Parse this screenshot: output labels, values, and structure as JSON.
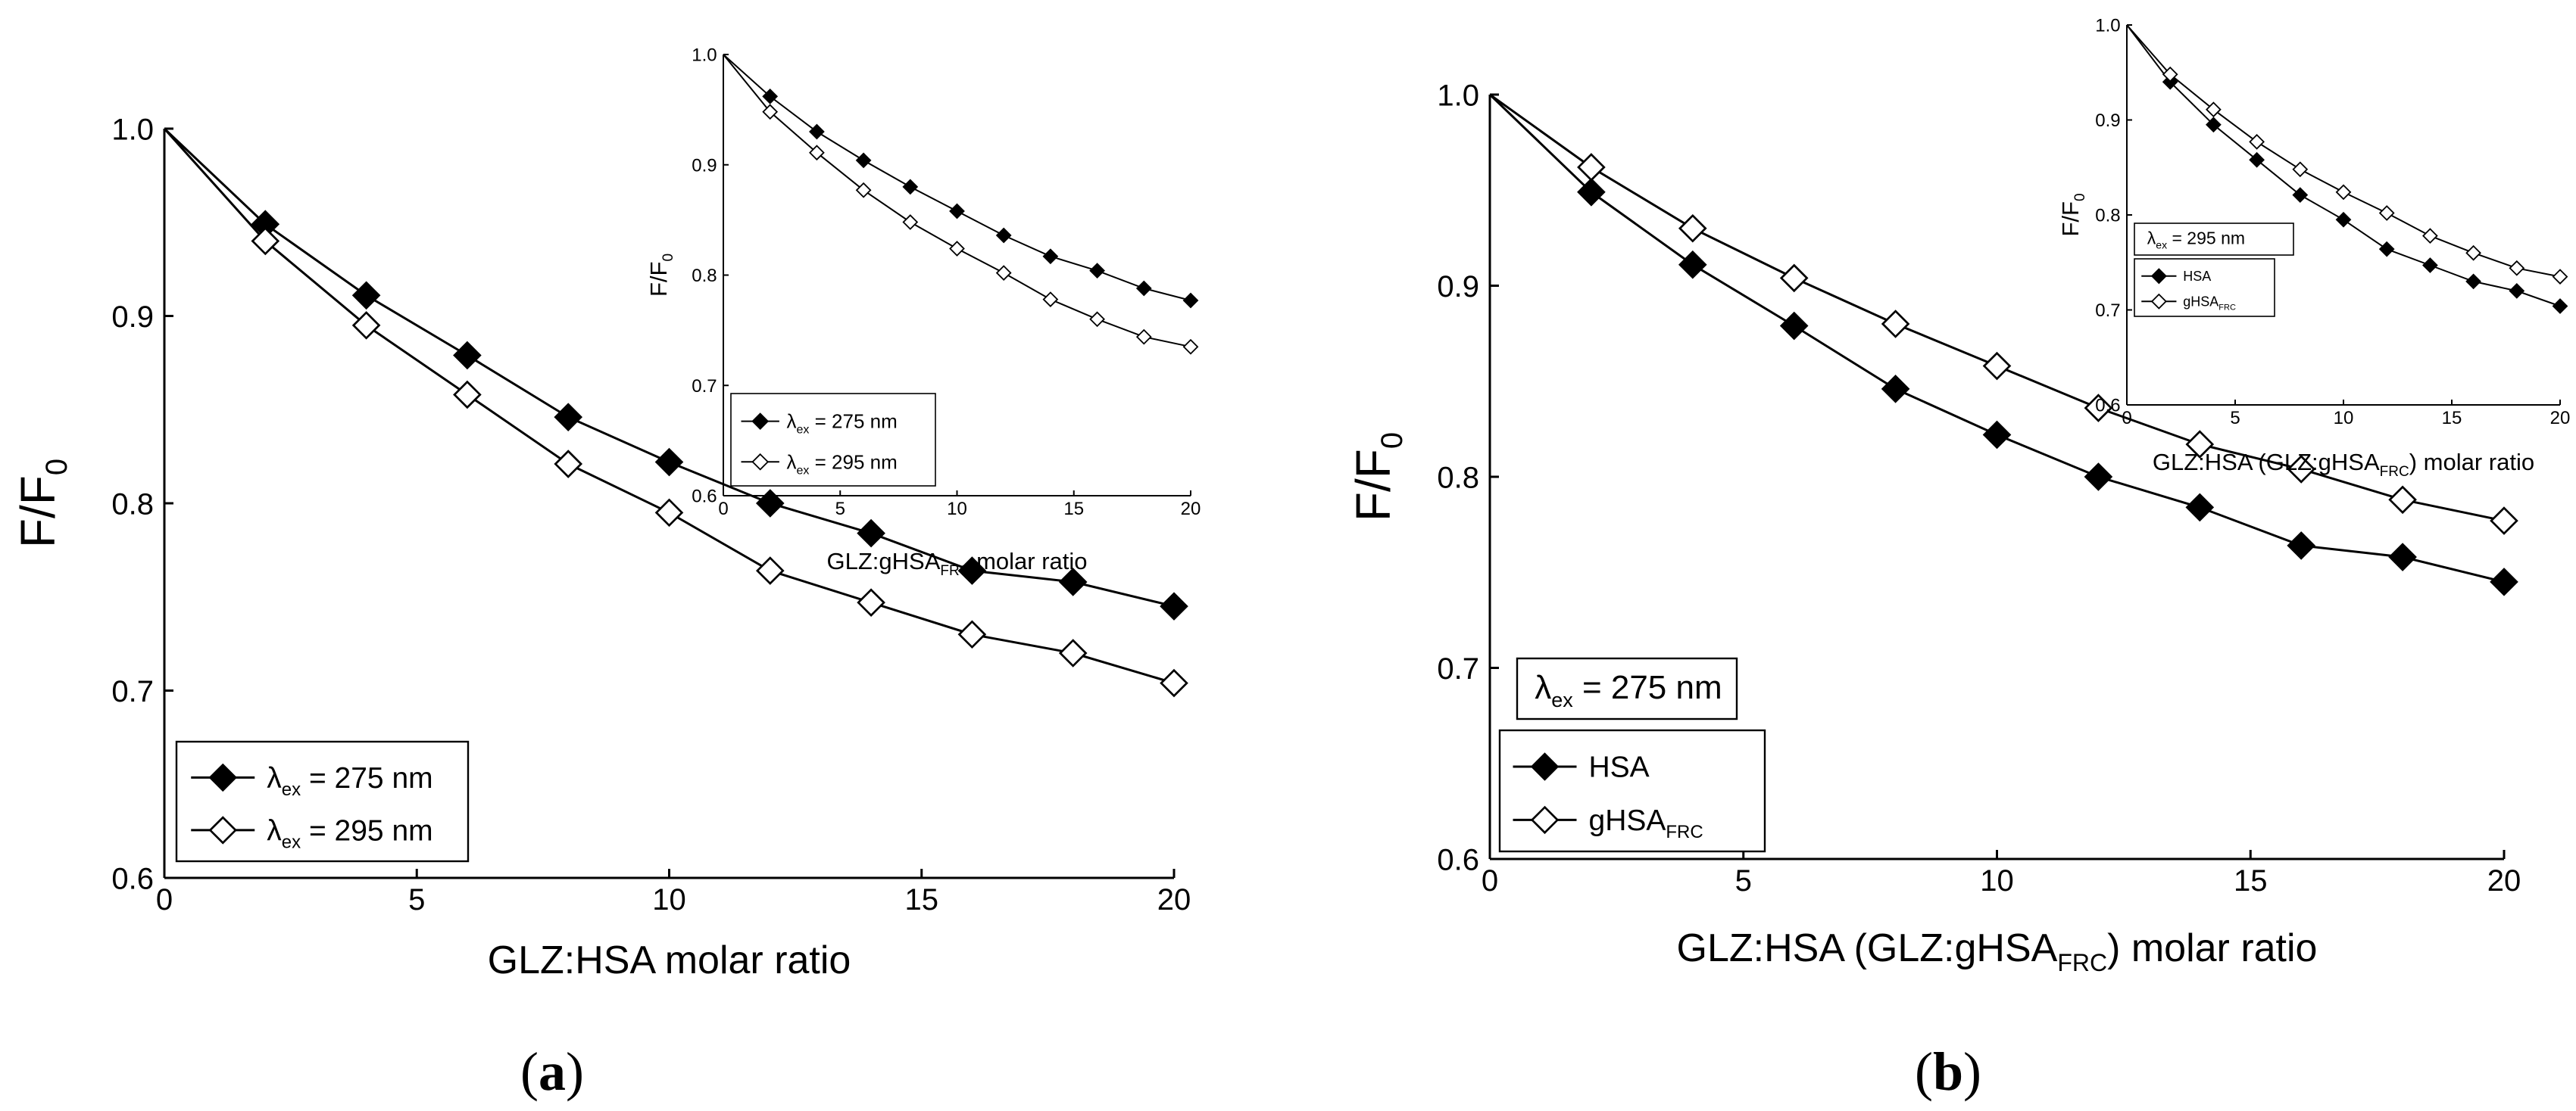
{
  "colors": {
    "filled": "#000000",
    "open": "#ffffff",
    "line": "#000000"
  },
  "panel_labels": {
    "a": {
      "open": "(",
      "letter": "a",
      "close": ")"
    },
    "b": {
      "open": "(",
      "letter": "b",
      "close": ")"
    }
  },
  "chart_data": [
    {
      "id": "a-main",
      "type": "line",
      "xlabel": "GLZ:HSA molar ratio",
      "ylabel": {
        "base": "F/F",
        "sub": "0"
      },
      "xlim": [
        0,
        20
      ],
      "ylim": [
        0.6,
        1.0
      ],
      "xticks": [
        0,
        5,
        10,
        15,
        20
      ],
      "xtick_labels": [
        "0",
        "5",
        "10",
        "15",
        "20"
      ],
      "yticks": [
        0.6,
        0.7,
        0.8,
        0.9,
        1.0
      ],
      "ytick_labels": [
        "0.6",
        "0.7",
        "0.8",
        "0.9",
        "1.0"
      ],
      "legend_box": null,
      "series": [
        {
          "name": "λex = 275 nm",
          "label": {
            "sym": "λ",
            "sub": "ex",
            "rest": " = 275 nm"
          },
          "marker": "filled-diamond",
          "x": [
            0,
            2,
            4,
            6,
            8,
            10,
            12,
            14,
            16,
            18,
            20
          ],
          "y": [
            1.0,
            0.949,
            0.911,
            0.879,
            0.846,
            0.822,
            0.8,
            0.784,
            0.764,
            0.758,
            0.745
          ]
        },
        {
          "name": "λex = 295 nm",
          "label": {
            "sym": "λ",
            "sub": "ex",
            "rest": " = 295 nm"
          },
          "marker": "open-diamond",
          "x": [
            0,
            2,
            4,
            6,
            8,
            10,
            12,
            14,
            16,
            18,
            20
          ],
          "y": [
            1.0,
            0.94,
            0.895,
            0.858,
            0.821,
            0.795,
            0.764,
            0.747,
            0.73,
            0.72,
            0.704
          ]
        }
      ]
    },
    {
      "id": "a-inset",
      "type": "line",
      "xlabel": {
        "base": "GLZ:gHSA",
        "sub": "FRC",
        "rest": " molar ratio"
      },
      "ylabel": {
        "base": "F/F",
        "sub": "0"
      },
      "xlim": [
        0,
        20
      ],
      "ylim": [
        0.6,
        1.0
      ],
      "xticks": [
        0,
        5,
        10,
        15,
        20
      ],
      "xtick_labels": [
        "0",
        "5",
        "10",
        "15",
        "20"
      ],
      "yticks": [
        0.6,
        0.7,
        0.8,
        0.9,
        1.0
      ],
      "ytick_labels": [
        "0.6",
        "0.7",
        "0.8",
        "0.9",
        "1.0"
      ],
      "legend_box": null,
      "series": [
        {
          "name": "λex = 275 nm",
          "label": {
            "sym": "λ",
            "sub": "ex",
            "rest": " = 275 nm"
          },
          "marker": "filled-diamond",
          "x": [
            0,
            2,
            4,
            6,
            8,
            10,
            12,
            14,
            16,
            18,
            20
          ],
          "y": [
            1.0,
            0.962,
            0.93,
            0.904,
            0.88,
            0.858,
            0.836,
            0.817,
            0.804,
            0.788,
            0.777
          ]
        },
        {
          "name": "λex = 295 nm",
          "label": {
            "sym": "λ",
            "sub": "ex",
            "rest": " = 295 nm"
          },
          "marker": "open-diamond",
          "x": [
            0,
            2,
            4,
            6,
            8,
            10,
            12,
            14,
            16,
            18,
            20
          ],
          "y": [
            1.0,
            0.948,
            0.911,
            0.877,
            0.848,
            0.824,
            0.802,
            0.778,
            0.76,
            0.744,
            0.735
          ]
        }
      ]
    },
    {
      "id": "b-main",
      "type": "line",
      "xlabel": {
        "base": "GLZ:HSA (GLZ:gHSA",
        "sub": "FRC",
        "rest": ") molar ratio"
      },
      "ylabel": {
        "base": "F/F",
        "sub": "0"
      },
      "xlim": [
        0,
        20
      ],
      "ylim": [
        0.6,
        1.0
      ],
      "xticks": [
        0,
        5,
        10,
        15,
        20
      ],
      "xtick_labels": [
        "0",
        "5",
        "10",
        "15",
        "20"
      ],
      "yticks": [
        0.6,
        0.7,
        0.8,
        0.9,
        1.0
      ],
      "ytick_labels": [
        "0.6",
        "0.7",
        "0.8",
        "0.9",
        "1.0"
      ],
      "legend_box": {
        "sym": "λ",
        "sub": "ex",
        "rest": " = 275 nm"
      },
      "series": [
        {
          "name": "HSA",
          "label": {
            "sym": "",
            "sub": "",
            "rest": "HSA"
          },
          "marker": "filled-diamond",
          "x": [
            0,
            2,
            4,
            6,
            8,
            10,
            12,
            14,
            16,
            18,
            20
          ],
          "y": [
            1.0,
            0.949,
            0.911,
            0.879,
            0.846,
            0.822,
            0.8,
            0.784,
            0.764,
            0.758,
            0.745
          ]
        },
        {
          "name": "gHSAFRC",
          "label": {
            "sym": "",
            "sub": "FRC",
            "rest": "gHSA"
          },
          "marker": "open-diamond",
          "x": [
            0,
            2,
            4,
            6,
            8,
            10,
            12,
            14,
            16,
            18,
            20
          ],
          "y": [
            1.0,
            0.962,
            0.93,
            0.904,
            0.88,
            0.858,
            0.836,
            0.817,
            0.804,
            0.788,
            0.777
          ]
        }
      ]
    },
    {
      "id": "b-inset",
      "type": "line",
      "xlabel": {
        "base": "GLZ:HSA (GLZ:gHSA",
        "sub": "FRC",
        "rest": ") molar ratio"
      },
      "ylabel": {
        "base": "F/F",
        "sub": "0"
      },
      "xlim": [
        0,
        20
      ],
      "ylim": [
        0.6,
        1.0
      ],
      "xticks": [
        0,
        5,
        10,
        15,
        20
      ],
      "xtick_labels": [
        "0",
        "5",
        "10",
        "15",
        "20"
      ],
      "yticks": [
        0.6,
        0.7,
        0.8,
        0.9,
        1.0
      ],
      "ytick_labels": [
        "0.6",
        "0.7",
        "0.8",
        "0.9",
        "1.0"
      ],
      "legend_box": {
        "sym": "λ",
        "sub": "ex",
        "rest": " = 295 nm"
      },
      "series": [
        {
          "name": "HSA",
          "label": {
            "sym": "",
            "sub": "",
            "rest": "HSA"
          },
          "marker": "filled-diamond",
          "x": [
            0,
            2,
            4,
            6,
            8,
            10,
            12,
            14,
            16,
            18,
            20
          ],
          "y": [
            1.0,
            0.94,
            0.895,
            0.858,
            0.821,
            0.795,
            0.764,
            0.747,
            0.73,
            0.72,
            0.704
          ]
        },
        {
          "name": "gHSAFRC",
          "label": {
            "sym": "",
            "sub": "FRC",
            "rest": "gHSA"
          },
          "marker": "open-diamond",
          "x": [
            0,
            2,
            4,
            6,
            8,
            10,
            12,
            14,
            16,
            18,
            20
          ],
          "y": [
            1.0,
            0.948,
            0.911,
            0.877,
            0.848,
            0.824,
            0.802,
            0.778,
            0.76,
            0.744,
            0.735
          ]
        }
      ]
    }
  ]
}
